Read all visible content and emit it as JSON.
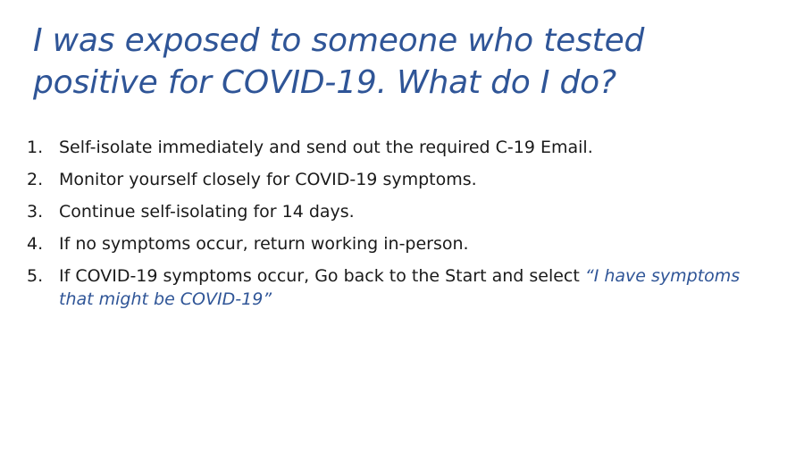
{
  "slide": {
    "title": "I was exposed to someone who tested positive for COVID-19. What do I do?",
    "steps": [
      {
        "num": "1.",
        "text": "Self-isolate immediately and send out the required C-19 Email."
      },
      {
        "num": "2.",
        "text": "Monitor yourself closely for COVID-19 symptoms."
      },
      {
        "num": "3.",
        "text": "Continue self-isolating for 14 days."
      },
      {
        "num": "4.",
        "text": "If no symptoms occur, return working in-person."
      },
      {
        "num": "5.",
        "text": "If COVID-19 symptoms occur, Go back to the Start and select ",
        "emphasis": "“I have symptoms that might be COVID-19”"
      }
    ]
  },
  "colors": {
    "accent": "#2f5597",
    "text": "#1a1a1a",
    "background": "#ffffff"
  }
}
